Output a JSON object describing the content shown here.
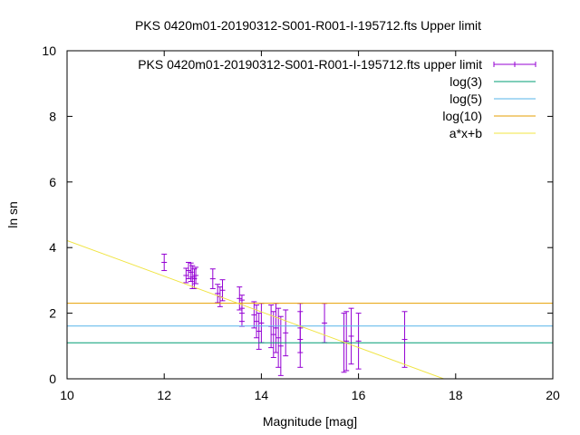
{
  "chart_data": {
    "type": "scatter",
    "title": "PKS 0420m01-20190312-S001-R001-I-195712.fts Upper limit",
    "xlabel": "Magnitude [mag]",
    "ylabel": "ln sn",
    "xlim": [
      10,
      20
    ],
    "ylim": [
      0,
      10
    ],
    "xticks": [
      10,
      12,
      14,
      16,
      18,
      20
    ],
    "yticks": [
      0,
      2,
      4,
      6,
      8,
      10
    ],
    "grid": false,
    "legend_position": "top-right",
    "series": [
      {
        "name": "PKS 0420m01-20190312-S001-R001-I-195712.fts upper limit",
        "kind": "errorbar",
        "color": "#9400d3",
        "points": [
          {
            "x": 12.0,
            "y": 3.55,
            "err": 0.25
          },
          {
            "x": 12.45,
            "y": 3.15,
            "err": 0.22
          },
          {
            "x": 12.5,
            "y": 3.3,
            "err": 0.25
          },
          {
            "x": 12.55,
            "y": 3.25,
            "err": 0.28
          },
          {
            "x": 12.58,
            "y": 3.1,
            "err": 0.35
          },
          {
            "x": 12.62,
            "y": 3.05,
            "err": 0.3
          },
          {
            "x": 12.65,
            "y": 3.15,
            "err": 0.25
          },
          {
            "x": 13.0,
            "y": 3.05,
            "err": 0.3
          },
          {
            "x": 13.1,
            "y": 2.6,
            "err": 0.28
          },
          {
            "x": 13.15,
            "y": 2.5,
            "err": 0.3
          },
          {
            "x": 13.2,
            "y": 2.7,
            "err": 0.32
          },
          {
            "x": 13.55,
            "y": 2.45,
            "err": 0.35
          },
          {
            "x": 13.6,
            "y": 2.15,
            "err": 0.4
          },
          {
            "x": 13.6,
            "y": 2.0,
            "err": 0.4
          },
          {
            "x": 13.85,
            "y": 1.95,
            "err": 0.4
          },
          {
            "x": 13.9,
            "y": 1.75,
            "err": 0.5
          },
          {
            "x": 13.95,
            "y": 1.45,
            "err": 0.55
          },
          {
            "x": 14.0,
            "y": 1.7,
            "err": 0.6
          },
          {
            "x": 14.2,
            "y": 1.6,
            "err": 0.65
          },
          {
            "x": 14.25,
            "y": 1.35,
            "err": 0.7
          },
          {
            "x": 14.3,
            "y": 1.55,
            "err": 0.75
          },
          {
            "x": 14.35,
            "y": 1.25,
            "err": 0.9
          },
          {
            "x": 14.4,
            "y": 1.0,
            "err": 0.9
          },
          {
            "x": 14.5,
            "y": 1.4,
            "err": 0.7
          },
          {
            "x": 14.8,
            "y": 1.55,
            "err": 0.75
          },
          {
            "x": 14.8,
            "y": 1.2,
            "err": 0.85
          },
          {
            "x": 15.3,
            "y": 1.7,
            "err": 0.6
          },
          {
            "x": 15.7,
            "y": 1.1,
            "err": 0.9
          },
          {
            "x": 15.75,
            "y": 1.15,
            "err": 0.9
          },
          {
            "x": 15.85,
            "y": 1.3,
            "err": 0.85
          },
          {
            "x": 16.0,
            "y": 1.15,
            "err": 0.85
          },
          {
            "x": 16.95,
            "y": 1.2,
            "err": 0.85
          }
        ]
      },
      {
        "name": "log(3)",
        "kind": "hline",
        "y": 1.0986,
        "color": "#009e73"
      },
      {
        "name": "log(5)",
        "kind": "hline",
        "y": 1.6094,
        "color": "#56b4e9"
      },
      {
        "name": "log(10)",
        "kind": "hline",
        "y": 2.3026,
        "color": "#e69f00"
      },
      {
        "name": "a*x+b",
        "kind": "fitline",
        "a": -0.5435,
        "b": 9.65,
        "color": "#f0e442"
      }
    ]
  }
}
